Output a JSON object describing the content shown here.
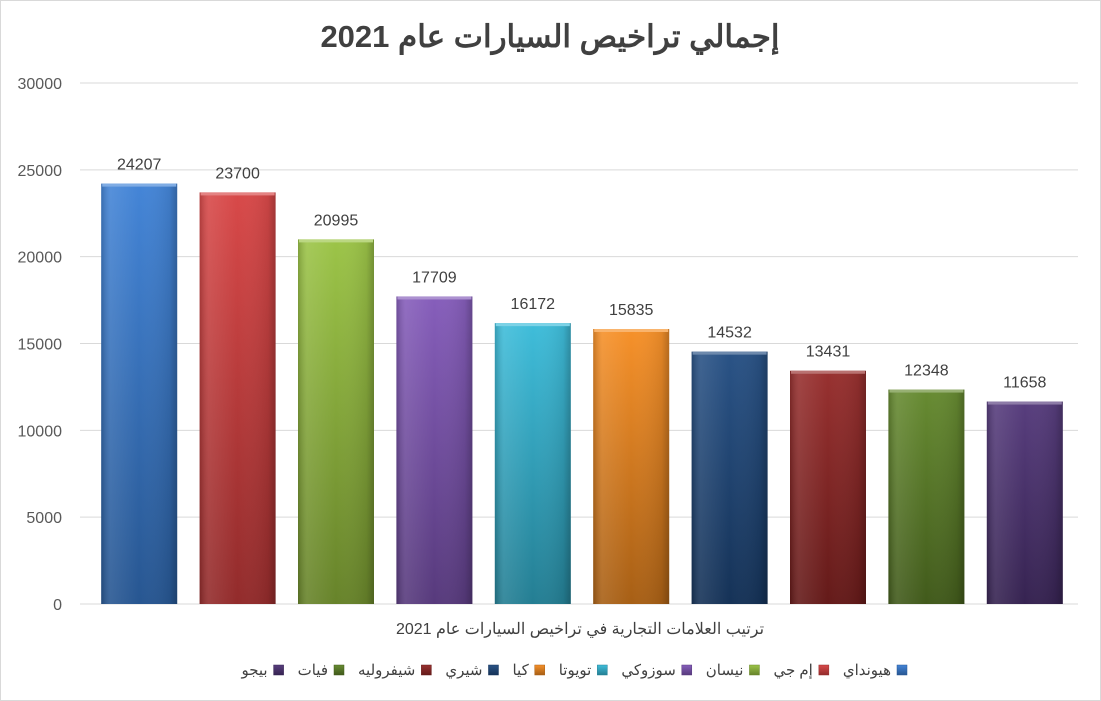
{
  "chart_data": {
    "type": "bar",
    "title": "إجمالي تراخيص السيارات عام 2021",
    "xlabel": "ترتيب العلامات التجارية في تراخيص السيارات عام 2021",
    "ylabel": "",
    "ylim": [
      0,
      30000
    ],
    "yticks": [
      0,
      5000,
      10000,
      15000,
      20000,
      25000,
      30000
    ],
    "grid": true,
    "legend_position": "bottom",
    "categories": [
      "هيونداي",
      "إم جي",
      "نيسان",
      "سوزوكي",
      "تويوتا",
      "كيا",
      "شيري",
      "شيفروليه",
      "فيات",
      "بيجو"
    ],
    "values": [
      24207,
      23700,
      20995,
      17709,
      16172,
      15835,
      14532,
      13431,
      12348,
      11658
    ],
    "colors": [
      "#3a7fd5",
      "#d63f3f",
      "#97c13e",
      "#8055b7",
      "#35bad8",
      "#f68b1f",
      "#1f4a80",
      "#932625",
      "#5f8527",
      "#4f3477"
    ]
  }
}
